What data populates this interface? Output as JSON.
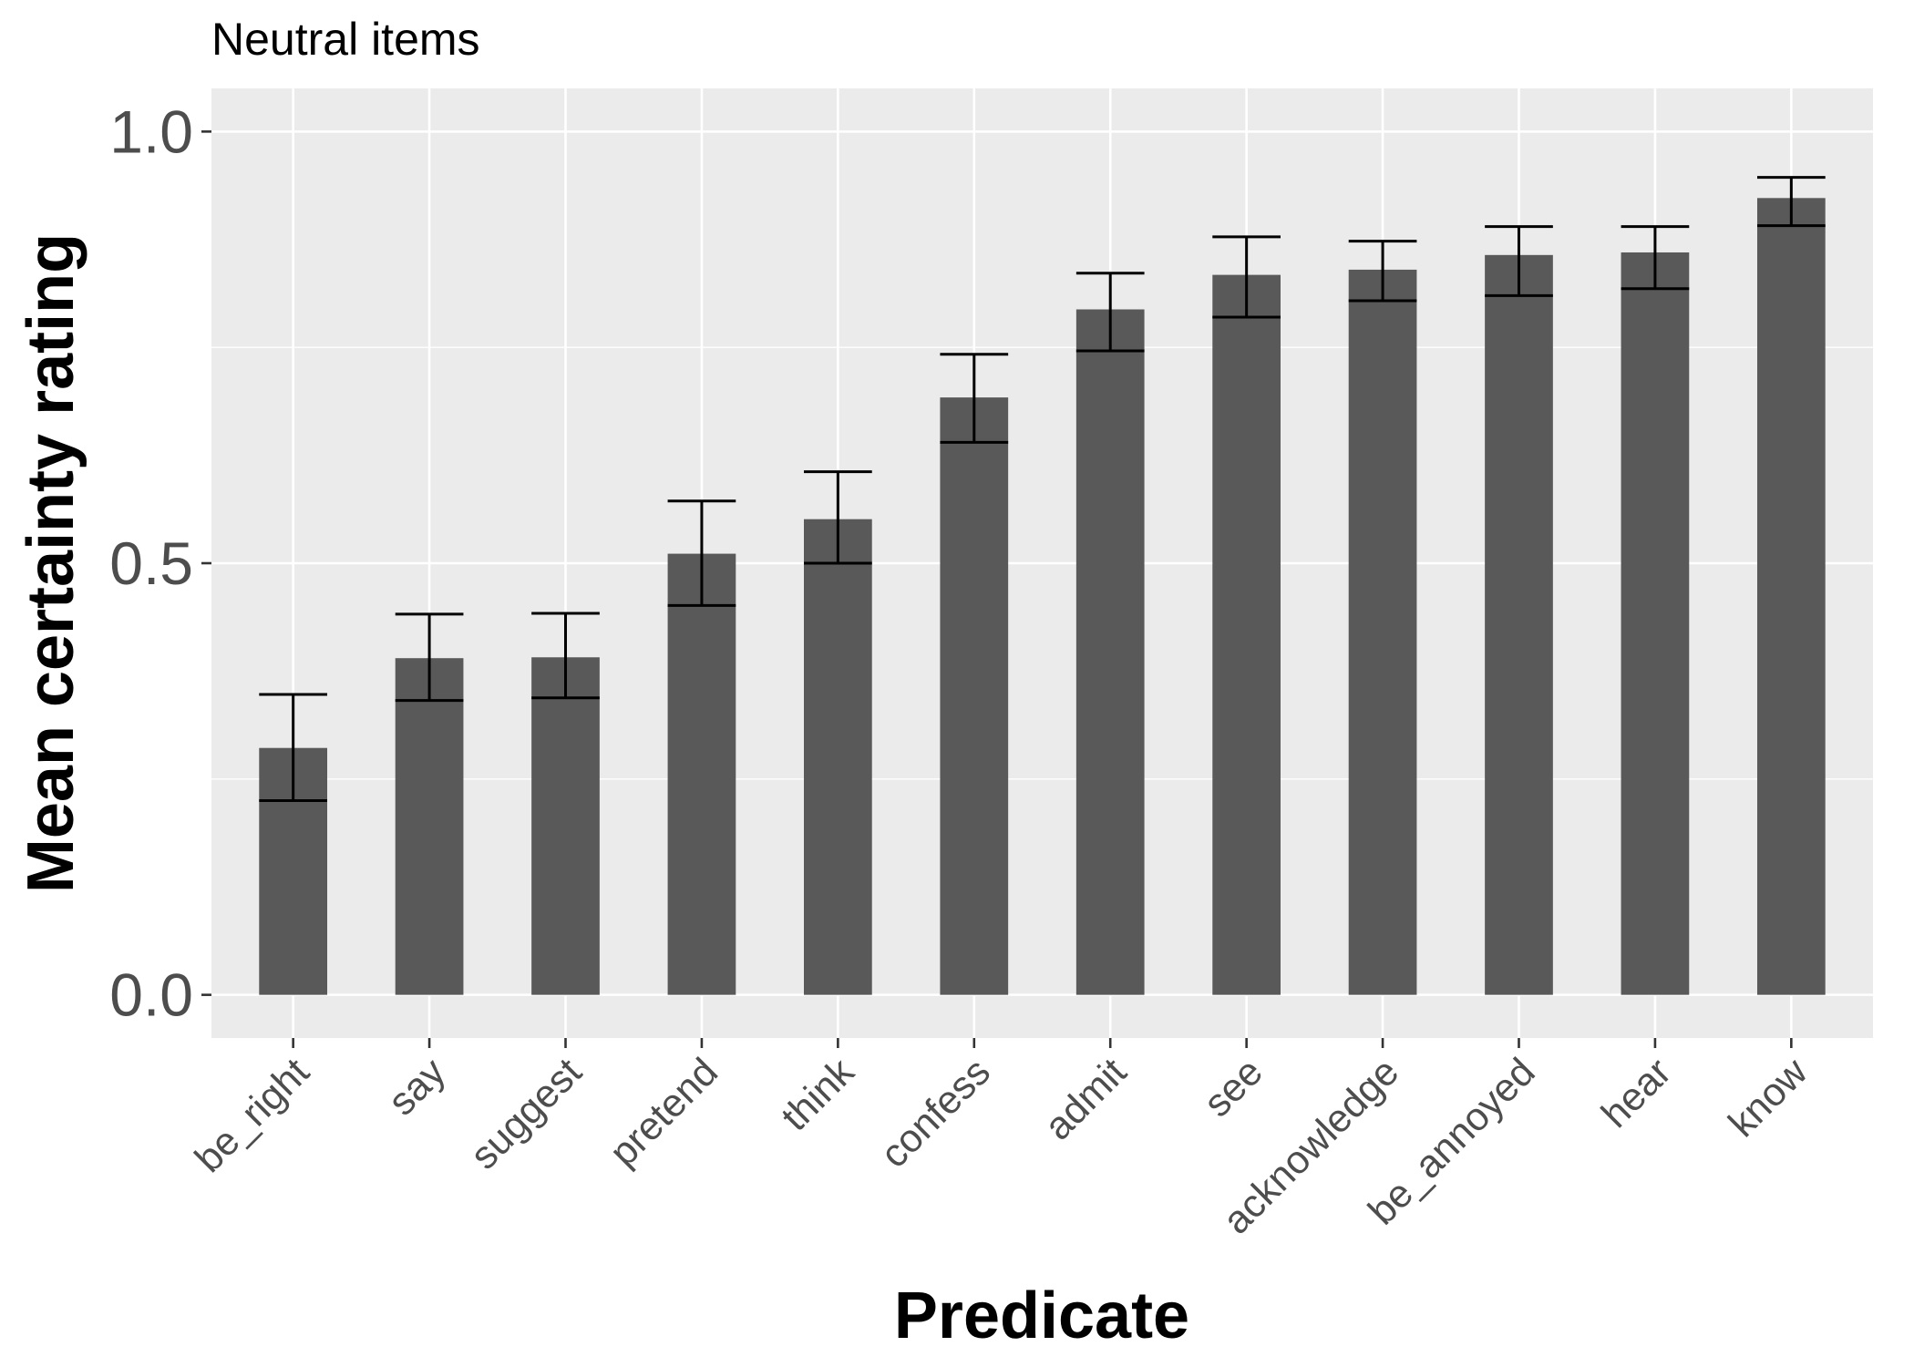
{
  "chart_data": {
    "type": "bar",
    "title": "",
    "subtitle": "Neutral items",
    "xlabel": "Predicate",
    "ylabel": "Mean certainty rating",
    "ylim": [
      -0.05,
      1.05
    ],
    "yticks": [
      0.0,
      0.5,
      1.0
    ],
    "ytick_labels": [
      "0.0",
      "0.5",
      "1.0"
    ],
    "grid": true,
    "legend": "none",
    "colors": {
      "bar": "#595959",
      "panel": "#ebebeb",
      "grid": "#ffffff",
      "errorbar": "#000000",
      "tick_text": "#4d4d4d"
    },
    "categories": [
      "be_right",
      "say",
      "suggest",
      "pretend",
      "think",
      "confess",
      "admit",
      "see",
      "acknowledge",
      "be_annoyed",
      "hear",
      "know"
    ],
    "values": [
      0.286,
      0.39,
      0.391,
      0.511,
      0.551,
      0.692,
      0.794,
      0.834,
      0.84,
      0.857,
      0.86,
      0.923
    ],
    "error_low": [
      0.225,
      0.341,
      0.344,
      0.451,
      0.5,
      0.64,
      0.746,
      0.785,
      0.804,
      0.81,
      0.818,
      0.891
    ],
    "error_high": [
      0.348,
      0.441,
      0.442,
      0.572,
      0.606,
      0.742,
      0.836,
      0.878,
      0.873,
      0.89,
      0.89,
      0.947
    ]
  }
}
